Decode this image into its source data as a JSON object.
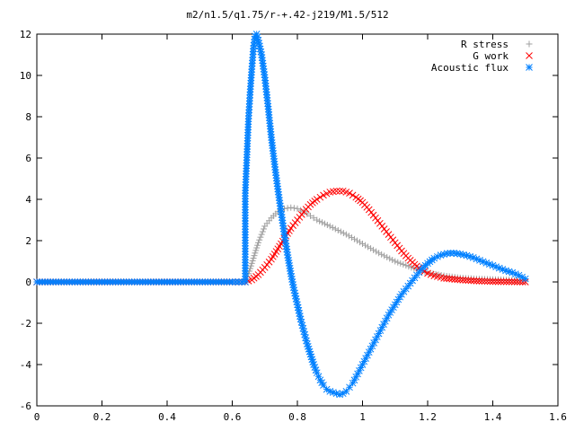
{
  "chart_data": {
    "type": "scatter",
    "title": "m2/n1.5/q1.75/r-+.42-j219/M1.5/512",
    "xlabel": "",
    "ylabel": "",
    "xlim": [
      0,
      1.6
    ],
    "ylim": [
      -6,
      12
    ],
    "x_ticks": [
      "0",
      "0.2",
      "0.4",
      "0.6",
      "0.8",
      "1",
      "1.2",
      "1.4",
      "1.6"
    ],
    "y_ticks": [
      "-6",
      "-4",
      "-2",
      "0",
      "2",
      "4",
      "6",
      "8",
      "10",
      "12"
    ],
    "grid": false,
    "legend_position": "top-right",
    "series": [
      {
        "name": "R stress",
        "marker": "+",
        "color": "#a0a0a0",
        "points": [
          [
            0.0,
            0
          ],
          [
            0.1,
            0
          ],
          [
            0.2,
            0
          ],
          [
            0.3,
            0
          ],
          [
            0.4,
            0
          ],
          [
            0.5,
            0
          ],
          [
            0.6,
            0
          ],
          [
            0.64,
            0
          ],
          [
            0.65,
            0.4
          ],
          [
            0.66,
            0.9
          ],
          [
            0.67,
            1.4
          ],
          [
            0.68,
            1.9
          ],
          [
            0.69,
            2.3
          ],
          [
            0.7,
            2.7
          ],
          [
            0.72,
            3.1
          ],
          [
            0.74,
            3.4
          ],
          [
            0.76,
            3.55
          ],
          [
            0.78,
            3.6
          ],
          [
            0.8,
            3.55
          ],
          [
            0.82,
            3.4
          ],
          [
            0.84,
            3.2
          ],
          [
            0.86,
            3.0
          ],
          [
            0.9,
            2.7
          ],
          [
            0.95,
            2.3
          ],
          [
            1.0,
            1.85
          ],
          [
            1.05,
            1.4
          ],
          [
            1.1,
            1.0
          ],
          [
            1.15,
            0.7
          ],
          [
            1.2,
            0.45
          ],
          [
            1.25,
            0.3
          ],
          [
            1.3,
            0.2
          ],
          [
            1.35,
            0.15
          ],
          [
            1.4,
            0.12
          ],
          [
            1.45,
            0.1
          ],
          [
            1.5,
            0.05
          ]
        ]
      },
      {
        "name": "G work",
        "marker": "x",
        "color": "#ff0000",
        "points": [
          [
            0.0,
            0
          ],
          [
            0.1,
            0
          ],
          [
            0.2,
            0
          ],
          [
            0.3,
            0
          ],
          [
            0.4,
            0
          ],
          [
            0.5,
            0
          ],
          [
            0.6,
            0
          ],
          [
            0.64,
            0
          ],
          [
            0.66,
            0.1
          ],
          [
            0.68,
            0.35
          ],
          [
            0.7,
            0.7
          ],
          [
            0.72,
            1.1
          ],
          [
            0.74,
            1.6
          ],
          [
            0.76,
            2.1
          ],
          [
            0.78,
            2.6
          ],
          [
            0.8,
            3.0
          ],
          [
            0.82,
            3.4
          ],
          [
            0.84,
            3.75
          ],
          [
            0.86,
            4.0
          ],
          [
            0.88,
            4.2
          ],
          [
            0.9,
            4.35
          ],
          [
            0.92,
            4.4
          ],
          [
            0.94,
            4.4
          ],
          [
            0.96,
            4.3
          ],
          [
            0.98,
            4.1
          ],
          [
            1.0,
            3.85
          ],
          [
            1.02,
            3.5
          ],
          [
            1.04,
            3.1
          ],
          [
            1.06,
            2.7
          ],
          [
            1.08,
            2.3
          ],
          [
            1.1,
            1.9
          ],
          [
            1.12,
            1.5
          ],
          [
            1.14,
            1.15
          ],
          [
            1.16,
            0.85
          ],
          [
            1.18,
            0.6
          ],
          [
            1.2,
            0.42
          ],
          [
            1.22,
            0.3
          ],
          [
            1.25,
            0.18
          ],
          [
            1.3,
            0.1
          ],
          [
            1.35,
            0.05
          ],
          [
            1.4,
            0.02
          ],
          [
            1.45,
            0.01
          ],
          [
            1.5,
            0.0
          ]
        ]
      },
      {
        "name": "Acoustic flux",
        "marker": "*",
        "color": "#0080ff",
        "points": [
          [
            0.0,
            0
          ],
          [
            0.1,
            0
          ],
          [
            0.2,
            0
          ],
          [
            0.3,
            0
          ],
          [
            0.4,
            0
          ],
          [
            0.5,
            0
          ],
          [
            0.6,
            0
          ],
          [
            0.64,
            0
          ],
          [
            0.64,
            4.3
          ],
          [
            0.65,
            7.9
          ],
          [
            0.655,
            9.2
          ],
          [
            0.66,
            10.3
          ],
          [
            0.665,
            11.3
          ],
          [
            0.67,
            11.9
          ],
          [
            0.675,
            12.0
          ],
          [
            0.68,
            11.7
          ],
          [
            0.69,
            11.0
          ],
          [
            0.7,
            9.9
          ],
          [
            0.71,
            8.5
          ],
          [
            0.72,
            7.0
          ],
          [
            0.73,
            5.7
          ],
          [
            0.74,
            4.5
          ],
          [
            0.75,
            3.4
          ],
          [
            0.76,
            2.3
          ],
          [
            0.77,
            1.3
          ],
          [
            0.78,
            0.4
          ],
          [
            0.79,
            -0.4
          ],
          [
            0.8,
            -1.1
          ],
          [
            0.81,
            -1.8
          ],
          [
            0.82,
            -2.4
          ],
          [
            0.83,
            -3.0
          ],
          [
            0.84,
            -3.5
          ],
          [
            0.85,
            -4.0
          ],
          [
            0.86,
            -4.4
          ],
          [
            0.87,
            -4.75
          ],
          [
            0.88,
            -5.0
          ],
          [
            0.89,
            -5.2
          ],
          [
            0.9,
            -5.3
          ],
          [
            0.91,
            -5.35
          ],
          [
            0.92,
            -5.4
          ],
          [
            0.93,
            -5.45
          ],
          [
            0.94,
            -5.4
          ],
          [
            0.95,
            -5.3
          ],
          [
            0.96,
            -5.1
          ],
          [
            0.97,
            -4.9
          ],
          [
            0.98,
            -4.6
          ],
          [
            0.99,
            -4.3
          ],
          [
            1.0,
            -4.0
          ],
          [
            1.01,
            -3.7
          ],
          [
            1.02,
            -3.4
          ],
          [
            1.03,
            -3.1
          ],
          [
            1.04,
            -2.8
          ],
          [
            1.05,
            -2.5
          ],
          [
            1.06,
            -2.2
          ],
          [
            1.07,
            -1.9
          ],
          [
            1.08,
            -1.6
          ],
          [
            1.09,
            -1.35
          ],
          [
            1.1,
            -1.1
          ],
          [
            1.12,
            -0.6
          ],
          [
            1.14,
            -0.2
          ],
          [
            1.16,
            0.2
          ],
          [
            1.18,
            0.6
          ],
          [
            1.2,
            0.9
          ],
          [
            1.22,
            1.15
          ],
          [
            1.24,
            1.3
          ],
          [
            1.26,
            1.38
          ],
          [
            1.28,
            1.4
          ],
          [
            1.3,
            1.35
          ],
          [
            1.32,
            1.28
          ],
          [
            1.34,
            1.18
          ],
          [
            1.36,
            1.05
          ],
          [
            1.38,
            0.92
          ],
          [
            1.4,
            0.8
          ],
          [
            1.42,
            0.67
          ],
          [
            1.44,
            0.55
          ],
          [
            1.46,
            0.45
          ],
          [
            1.48,
            0.32
          ],
          [
            1.5,
            0.15
          ]
        ]
      }
    ]
  }
}
